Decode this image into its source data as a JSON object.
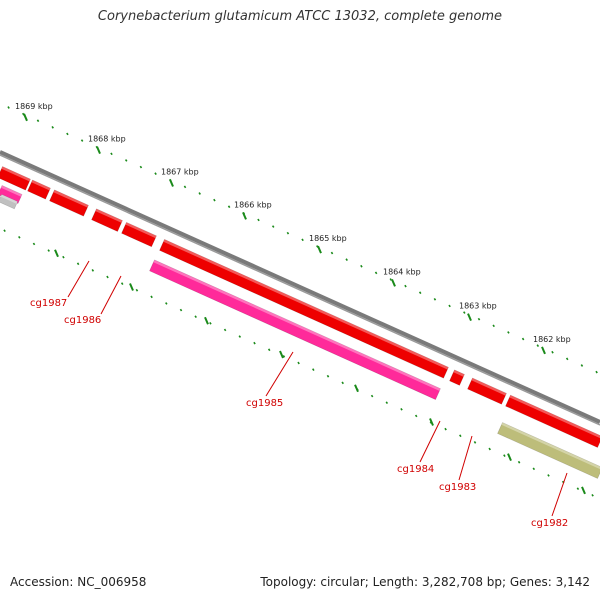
{
  "title": "Corynebacterium glutamicum ATCC 13032, complete genome",
  "footer": {
    "accession": "Accession: NC_006958",
    "summary": "Topology: circular; Length: 3,282,708 bp; Genes: 3,142"
  },
  "colors": {
    "backbone": "#7a7a7a",
    "forward_gene": "#ee0000",
    "reverse_gene": "#ff2a9a",
    "other_gene": "#bdbd7a",
    "grey_gene": "#c0c0c0",
    "tick": "#1a8a1a",
    "label": "#d00000"
  },
  "ruler": [
    {
      "id": "1869",
      "label": "1869 kbp"
    },
    {
      "id": "1868",
      "label": "1868 kbp"
    },
    {
      "id": "1867",
      "label": "1867 kbp"
    },
    {
      "id": "1866",
      "label": "1866 kbp"
    },
    {
      "id": "1865",
      "label": "1865 kbp"
    },
    {
      "id": "1864",
      "label": "1864 kbp"
    },
    {
      "id": "1863",
      "label": "1863 kbp"
    },
    {
      "id": "1862",
      "label": "1862 kbp"
    }
  ],
  "genes": [
    {
      "id": "cg1987",
      "label": "cg1987"
    },
    {
      "id": "cg1986",
      "label": "cg1986"
    },
    {
      "id": "cg1985",
      "label": "cg1985"
    },
    {
      "id": "cg1984",
      "label": "cg1984"
    },
    {
      "id": "cg1983",
      "label": "cg1983"
    },
    {
      "id": "cg1982",
      "label": "cg1982"
    }
  ]
}
